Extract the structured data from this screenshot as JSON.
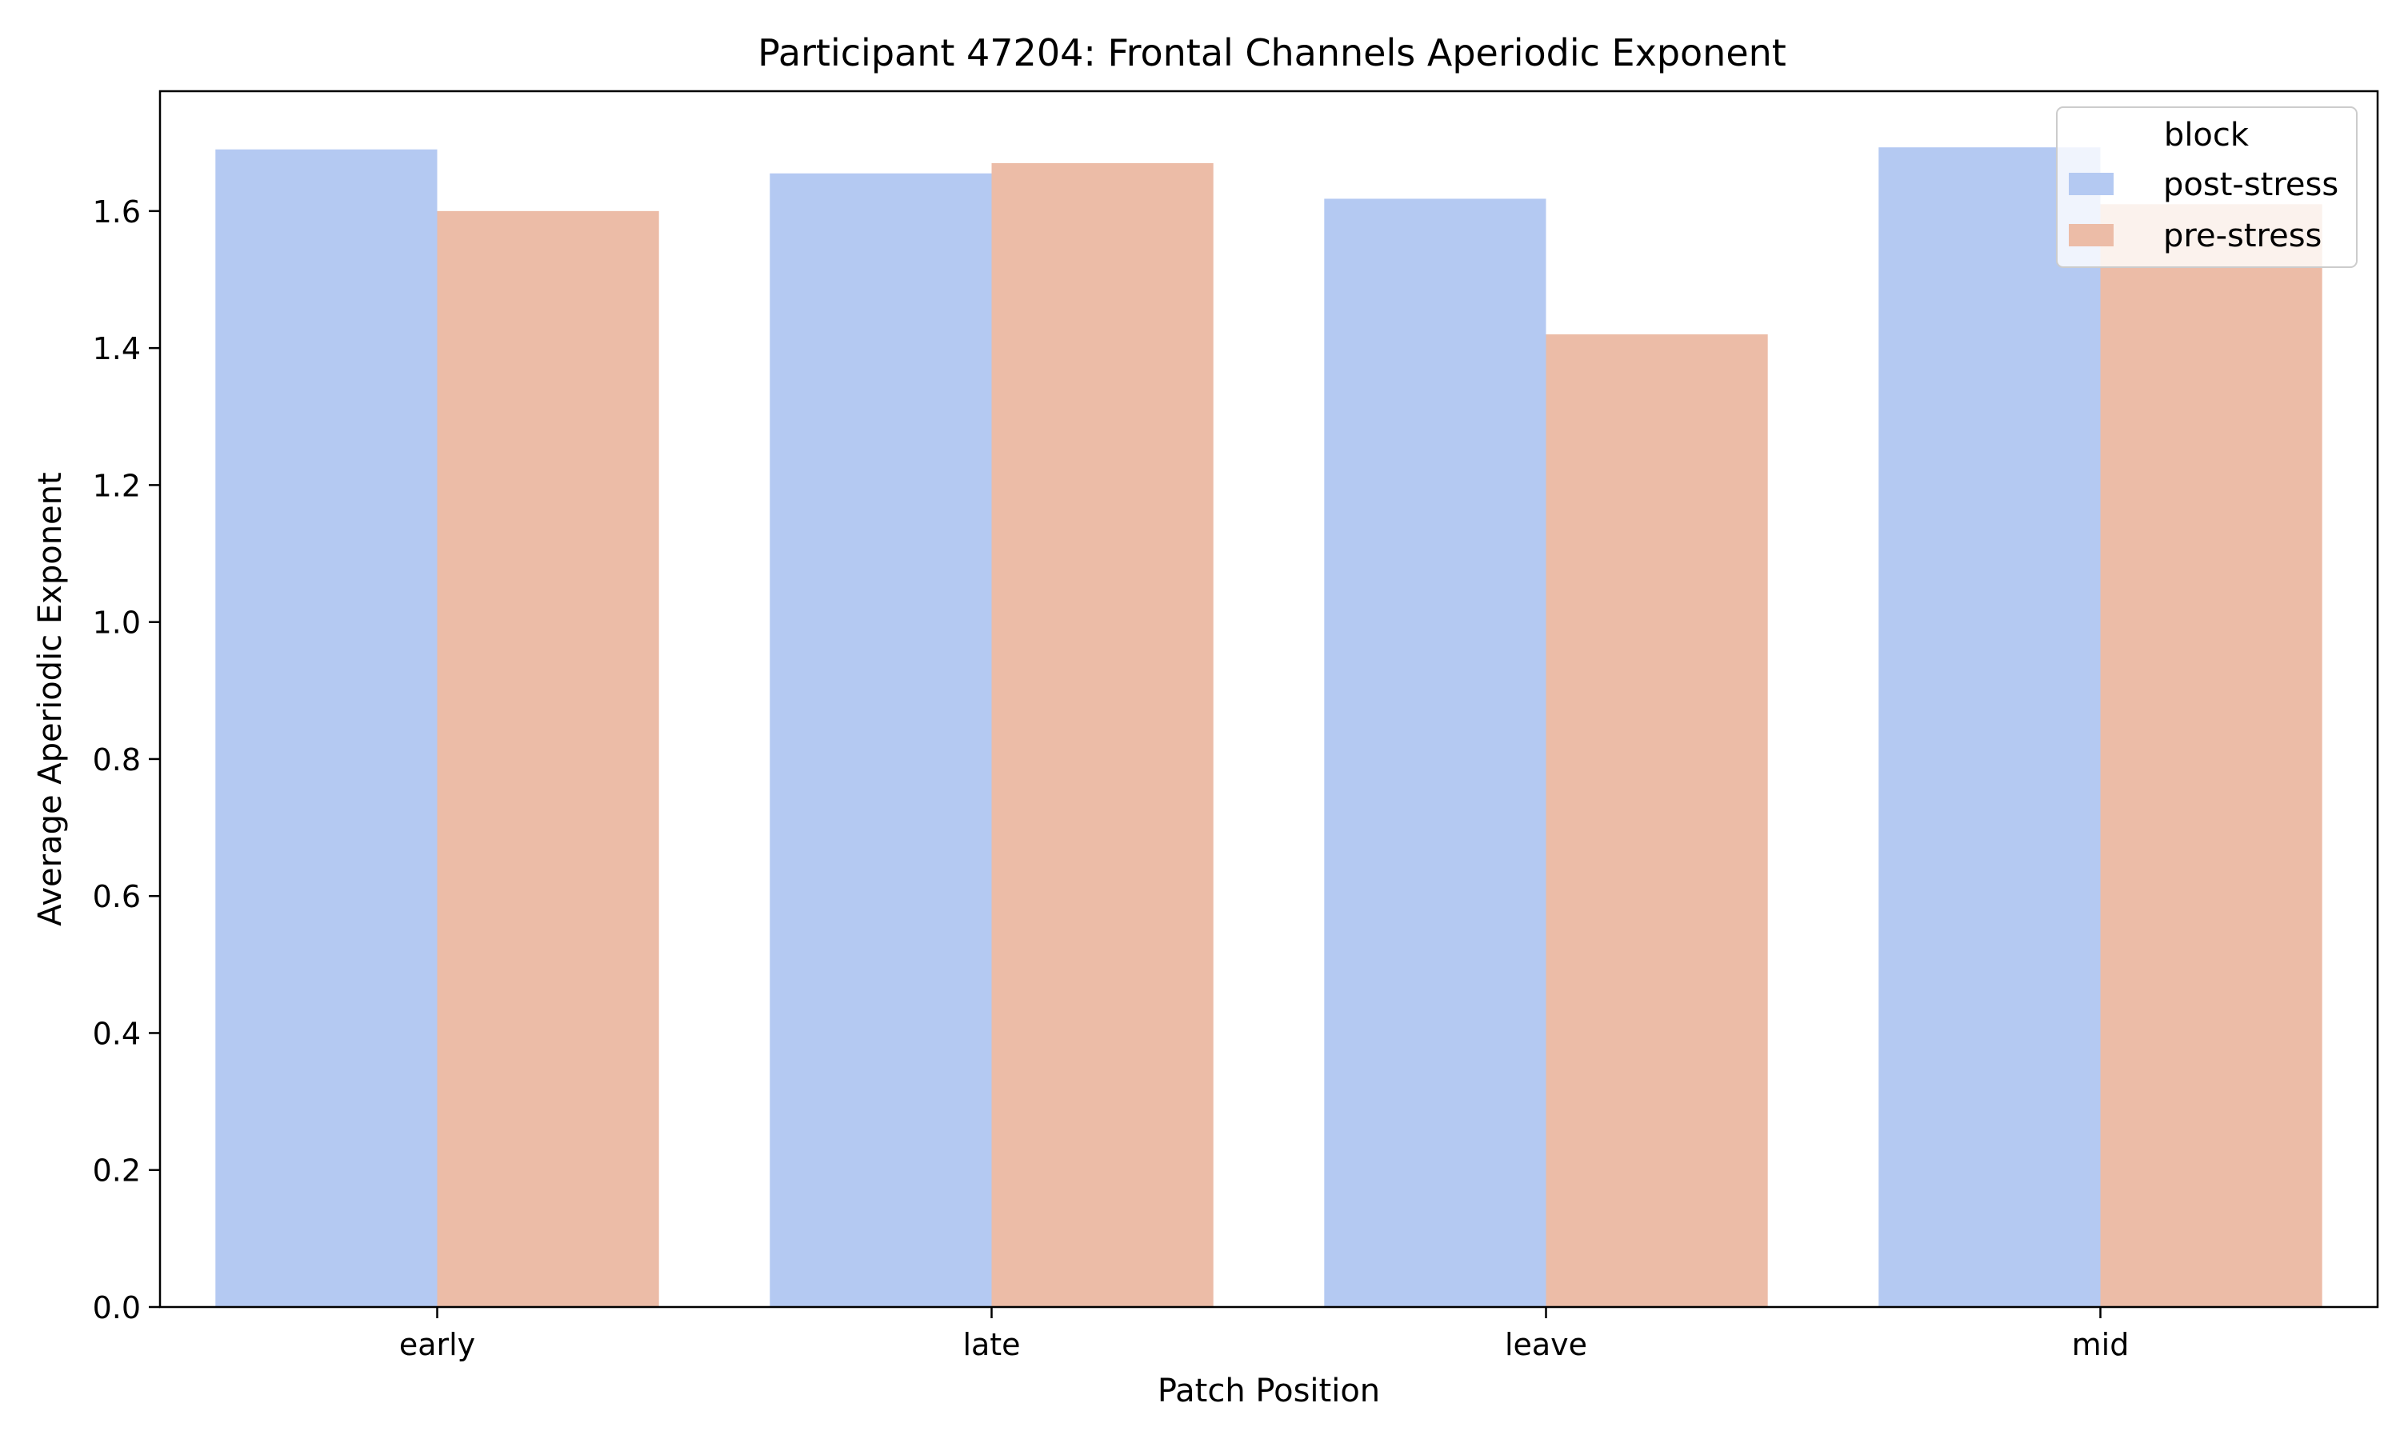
{
  "chart_data": {
    "type": "bar",
    "title": "Participant 47204: Frontal Channels Aperiodic Exponent",
    "xlabel": "Patch Position",
    "ylabel": "Average Aperiodic Exponent",
    "categories": [
      "early",
      "late",
      "leave",
      "mid"
    ],
    "series": [
      {
        "name": "post-stress",
        "color": "#b4c9f2",
        "values": [
          1.69,
          1.655,
          1.618,
          1.693
        ]
      },
      {
        "name": "pre-stress",
        "color": "#ecbca7",
        "values": [
          1.6,
          1.67,
          1.42,
          1.61
        ]
      }
    ],
    "ylim": [
      0,
      1.775
    ],
    "yticks": [
      "0.0",
      "0.2",
      "0.4",
      "0.6",
      "0.8",
      "1.0",
      "1.2",
      "1.4",
      "1.6"
    ],
    "legend": {
      "title": "block",
      "position": "top-right"
    },
    "grid": false
  }
}
